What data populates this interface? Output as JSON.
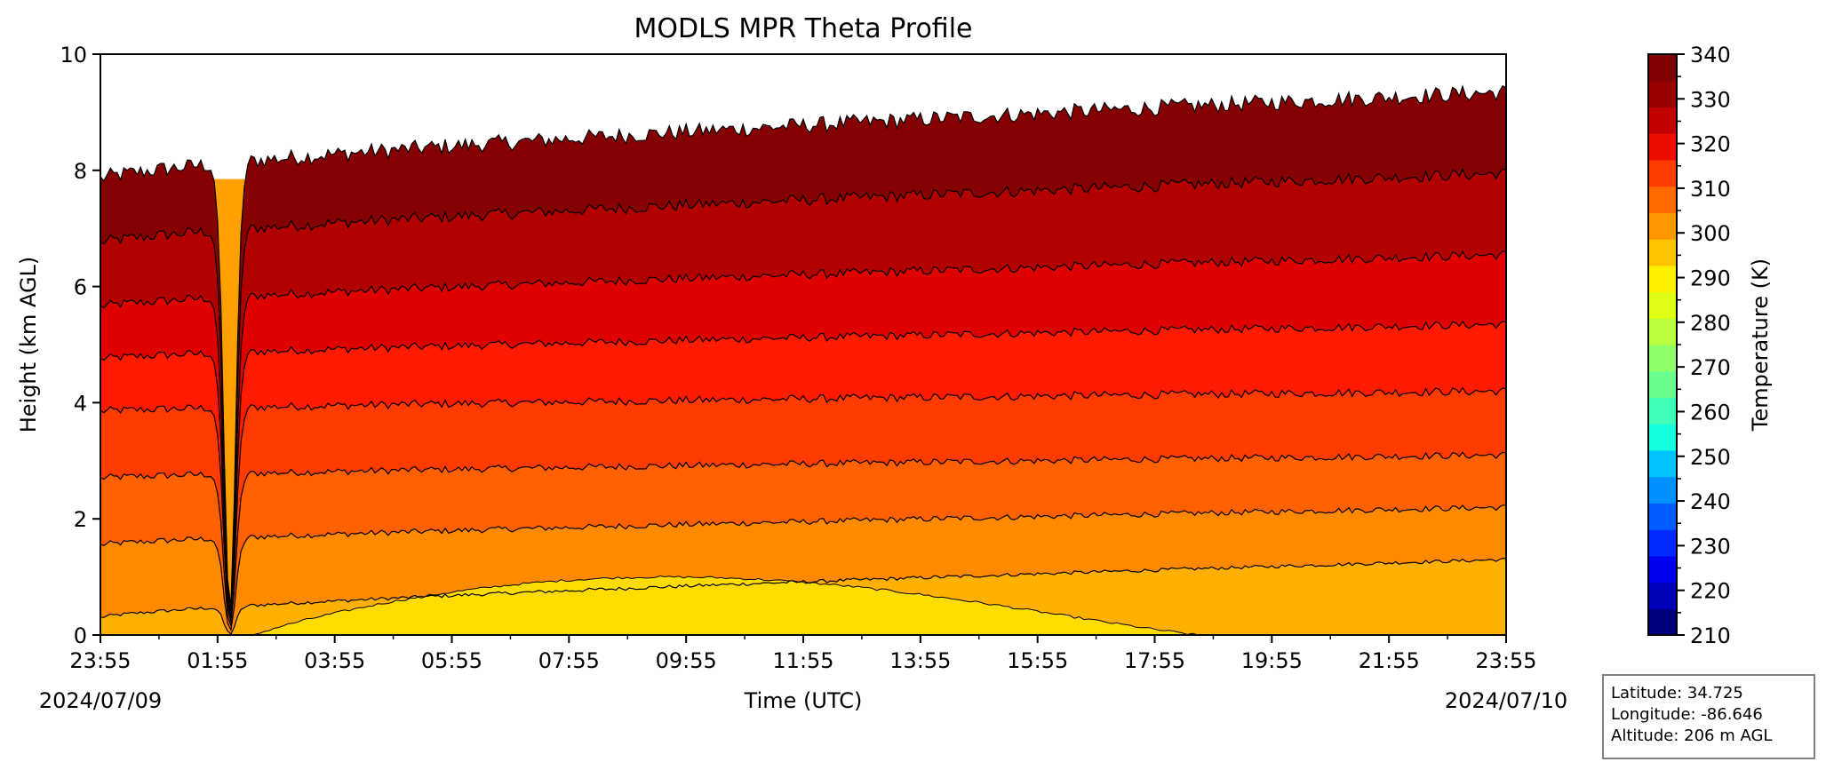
{
  "chart_data": {
    "type": "filled-contour",
    "title": "MODLS MPR Theta Profile",
    "xlabel": "Time (UTC)",
    "ylabel": "Height (km AGL)",
    "x_ticks": [
      "23:55",
      "01:55",
      "03:55",
      "05:55",
      "07:55",
      "09:55",
      "11:55",
      "13:55",
      "15:55",
      "17:55",
      "19:55",
      "21:55",
      "23:55"
    ],
    "date_start": "2024/07/09",
    "date_end": "2024/07/10",
    "ylim": [
      0,
      10
    ],
    "y_ticks": [
      0,
      2,
      4,
      6,
      8,
      10
    ],
    "colorbar": {
      "label": "Temperature (K)",
      "range": [
        210,
        340
      ],
      "ticks": [
        210,
        220,
        230,
        240,
        250,
        260,
        270,
        280,
        290,
        300,
        310,
        320,
        330,
        340
      ],
      "colors": [
        "#00007f",
        "#0000b8",
        "#0000f1",
        "#002aff",
        "#005dff",
        "#0090ff",
        "#00c3ff",
        "#16ffe1",
        "#3fffb8",
        "#68ff8f",
        "#8fff68",
        "#b8ff3f",
        "#e1ff16",
        "#fff100",
        "#ffc300",
        "#ff9800",
        "#ff6a00",
        "#ff3c00",
        "#ee0e00",
        "#c30000",
        "#980000",
        "#7f0000"
      ]
    },
    "contour_levels_height_km": [
      {
        "level": 300,
        "start": 0.3,
        "end": 1.3
      },
      {
        "level": 305,
        "start": 1.55,
        "end": 2.2
      },
      {
        "level": 310,
        "start": 2.7,
        "end": 3.1
      },
      {
        "level": 315,
        "start": 3.85,
        "end": 4.2
      },
      {
        "level": 320,
        "start": 4.75,
        "end": 5.35
      },
      {
        "level": 325,
        "start": 5.65,
        "end": 6.55
      },
      {
        "level": 330,
        "start": 6.75,
        "end": 7.95
      },
      {
        "level": 335,
        "start": 7.85,
        "end": 9.35
      }
    ],
    "info": {
      "latitude": "Latitude: 34.725",
      "longitude": "Longitude: -86.646",
      "altitude": "Altitude: 206 m AGL"
    }
  }
}
